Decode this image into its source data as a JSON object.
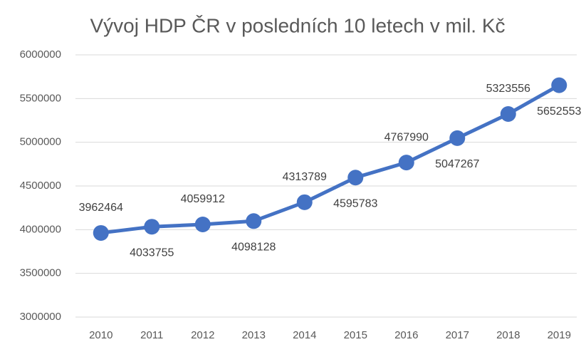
{
  "chart_data": {
    "type": "line",
    "title": "Vývoj HDP ČR v posledních 10 letech v mil. Kč",
    "categories": [
      "2010",
      "2011",
      "2012",
      "2013",
      "2014",
      "2015",
      "2016",
      "2017",
      "2018",
      "2019"
    ],
    "series": [
      {
        "name": "HDP",
        "color": "#4472c4",
        "values": [
          3962464,
          4033755,
          4059912,
          4098128,
          4313789,
          4595783,
          4767990,
          5047267,
          5323556,
          5652553
        ]
      }
    ],
    "ylim": [
      3000000,
      6000000
    ],
    "yticks": [
      3000000,
      3500000,
      4000000,
      4500000,
      5000000,
      5500000,
      6000000
    ],
    "grid": true
  }
}
